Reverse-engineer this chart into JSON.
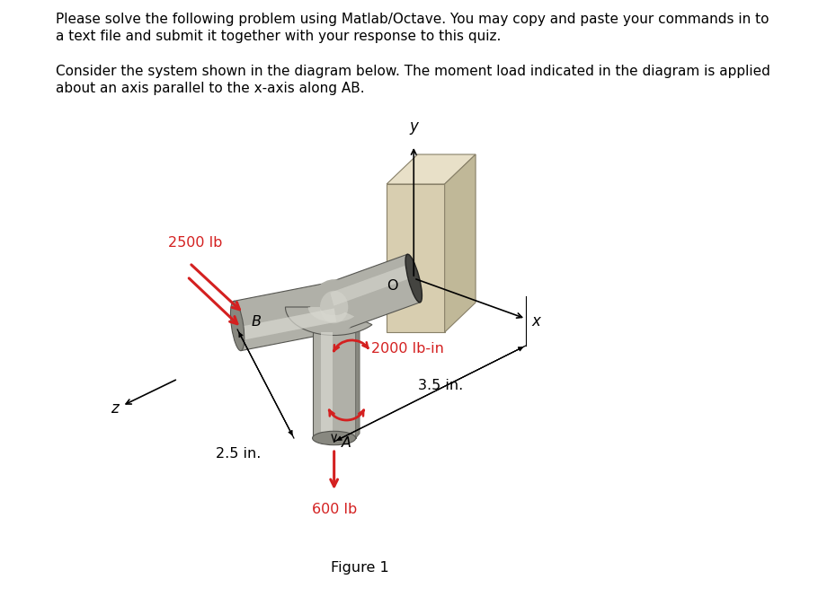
{
  "title_line1": "Please solve the following problem using Matlab/Octave. You may copy and paste your commands in to",
  "title_line2": "a text file and submit it together with your response to this quiz.",
  "body_line1": "Consider the system shown in the diagram below. The moment load indicated in the diagram is applied",
  "body_line2": "about an axis parallel to the x-axis along AB.",
  "figure_caption": "Figure 1",
  "label_2500": "2500 lb",
  "label_600": "600 lb",
  "label_2000": "2000 lb-in",
  "label_25": "2.5 in.",
  "label_35": "3.5 in.",
  "label_A": "A",
  "label_B": "B",
  "label_O": "O",
  "label_x": "x",
  "label_y": "y",
  "label_z": "z",
  "bg_color": "#ffffff",
  "text_color": "#000000",
  "red_color": "#d42020",
  "pipe_light": "#d8d8d0",
  "pipe_mid": "#b0b0a8",
  "pipe_dark": "#888880",
  "pipe_edge": "#555550",
  "wall_front": "#d8ceb0",
  "wall_top": "#e8e0c8",
  "wall_right": "#c0b898",
  "wall_edge": "#888068",
  "body_fontsize": 11,
  "label_fontsize": 11.5,
  "axis_fontsize": 12
}
